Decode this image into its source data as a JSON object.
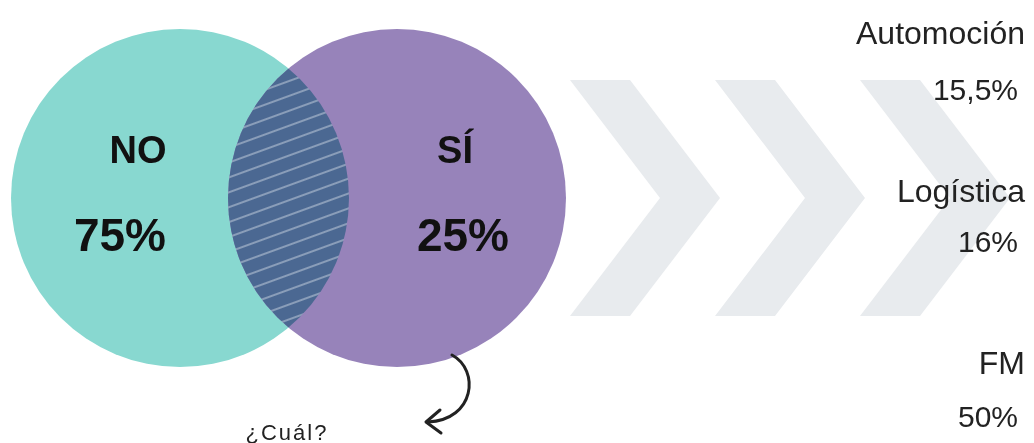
{
  "chart_data": [
    {
      "type": "other",
      "categories": [
        "NO",
        "SÍ"
      ],
      "values": [
        75,
        25
      ],
      "value_labels": [
        "75%",
        "25%"
      ],
      "colors": [
        "#88d8d0",
        "#9783ba"
      ],
      "annotations": [
        "¿Cuál?"
      ]
    },
    {
      "type": "other",
      "categories": [
        "Automoción",
        "Logística",
        "FM"
      ],
      "values": [
        15.5,
        16,
        50
      ],
      "value_labels": [
        "15,5%",
        "16%",
        "50%"
      ]
    }
  ]
}
